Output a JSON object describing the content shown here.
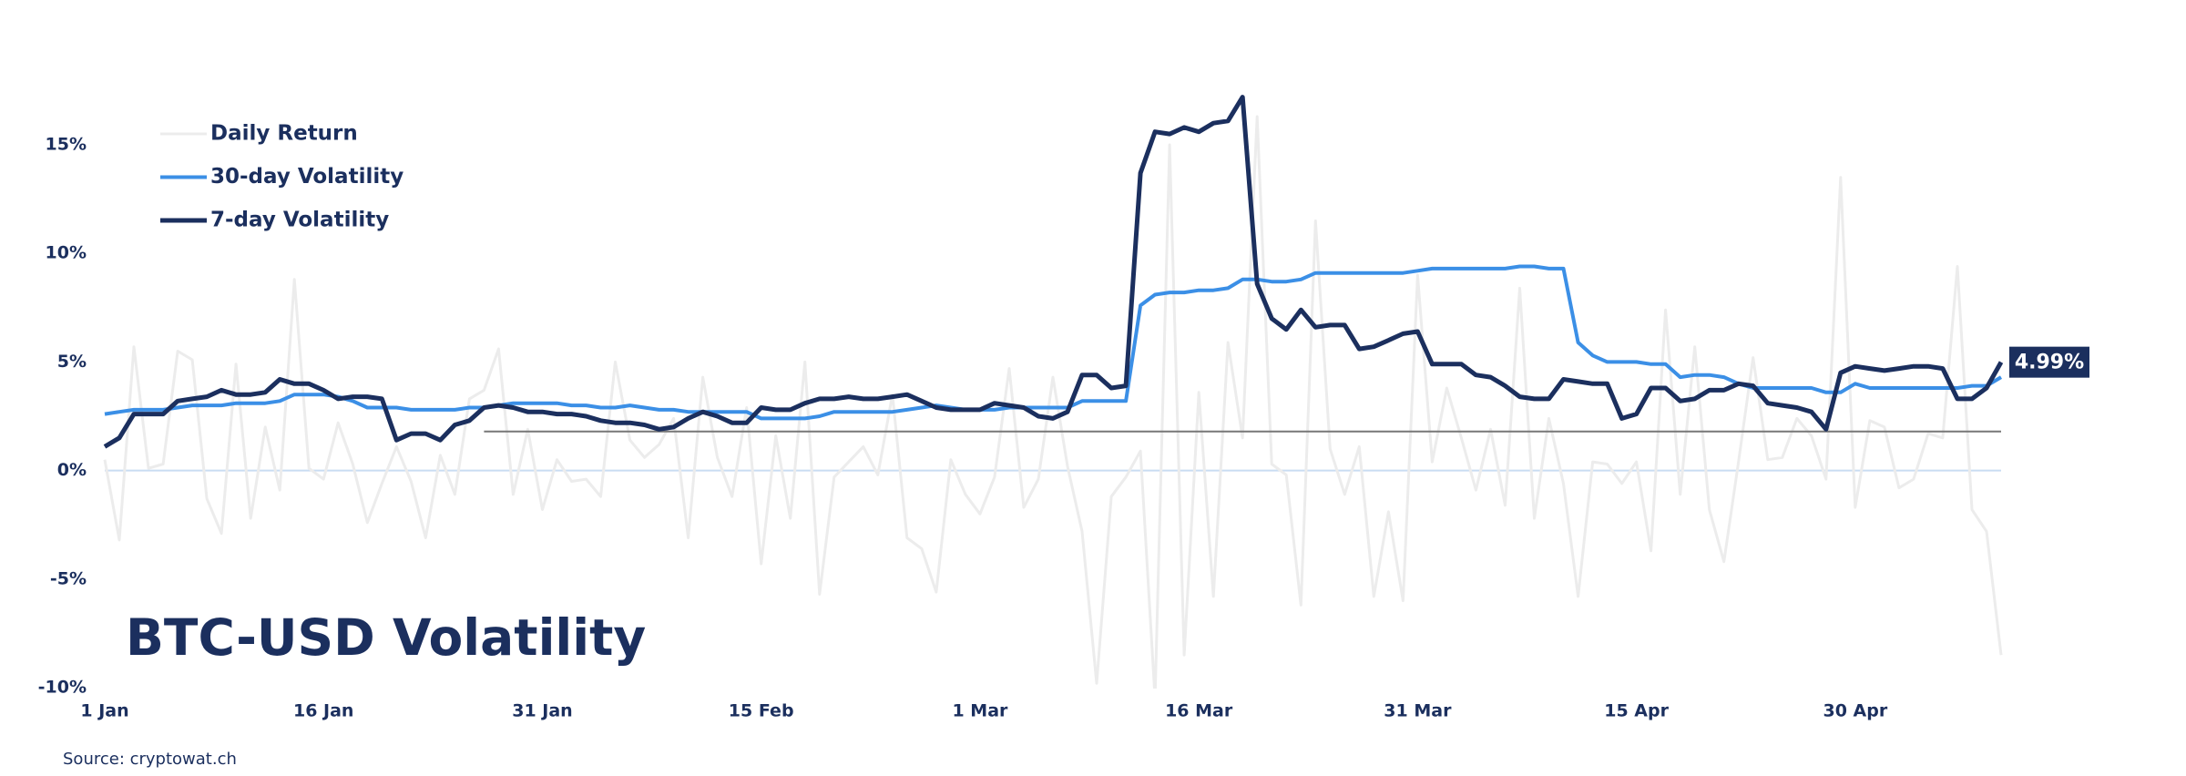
{
  "chart_data": {
    "type": "line",
    "title": "BTC-USD Volatility",
    "source": "Source: cryptowat.ch",
    "categories": [
      "1 Jan",
      null,
      null,
      null,
      null,
      null,
      null,
      null,
      null,
      null,
      null,
      null,
      null,
      null,
      null,
      "16 Jan",
      null,
      null,
      null,
      null,
      null,
      null,
      null,
      null,
      null,
      null,
      null,
      null,
      null,
      null,
      "31 Jan",
      null,
      null,
      null,
      null,
      null,
      null,
      null,
      null,
      null,
      null,
      null,
      null,
      null,
      null,
      "15 Feb",
      null,
      null,
      null,
      null,
      null,
      null,
      null,
      null,
      null,
      null,
      null,
      null,
      null,
      null,
      "1 Mar",
      null,
      null,
      null,
      null,
      null,
      null,
      null,
      null,
      null,
      null,
      null,
      null,
      null,
      null,
      "16 Mar",
      null,
      null,
      null,
      null,
      null,
      null,
      null,
      null,
      null,
      null,
      null,
      null,
      null,
      null,
      "31 Mar",
      null,
      null,
      null,
      null,
      null,
      null,
      null,
      null,
      null,
      null,
      null,
      null,
      null,
      null,
      "15 Apr",
      null,
      null,
      null,
      null,
      null,
      null,
      null,
      null,
      null,
      null,
      null,
      null,
      null,
      null,
      "30 Apr",
      null,
      null,
      null,
      null,
      null,
      null,
      null,
      null,
      null,
      null
    ],
    "series": [
      {
        "name": "Daily Return",
        "color": "#ececec",
        "width": 3,
        "values": [
          0.5,
          -3.2,
          5.7,
          0.1,
          0.3,
          5.5,
          5.1,
          -1.3,
          -2.9,
          4.9,
          -2.2,
          2.0,
          -0.9,
          8.8,
          0.1,
          -0.4,
          2.2,
          0.3,
          -2.4,
          -0.6,
          1.1,
          -0.5,
          -3.1,
          0.7,
          -1.1,
          3.3,
          3.7,
          5.6,
          -1.1,
          1.9,
          -1.8,
          0.5,
          -0.5,
          -0.4,
          -1.2,
          5.0,
          1.4,
          0.6,
          1.2,
          2.4,
          -3.1,
          4.3,
          0.6,
          -1.2,
          2.9,
          -4.3,
          1.6,
          -2.2,
          5.0,
          -5.7,
          -0.3,
          0.4,
          1.1,
          -0.2,
          3.5,
          -3.1,
          -3.6,
          -5.6,
          0.5,
          -1.1,
          -2.0,
          -0.3,
          4.7,
          -1.7,
          -0.4,
          4.3,
          0.2,
          -2.8,
          -9.8,
          -1.2,
          -0.3,
          0.9,
          -10.5,
          15.0,
          -8.5,
          3.6,
          -5.8,
          5.9,
          1.5,
          16.3,
          0.3,
          -0.2,
          -6.2,
          11.5,
          1.0,
          -1.1,
          1.1,
          -5.8,
          -1.9,
          -6.0,
          9.0,
          0.4,
          3.8,
          1.5,
          -0.9,
          1.9,
          -1.6,
          8.4,
          -2.2,
          2.4,
          -0.6,
          -5.8,
          0.4,
          0.3,
          -0.6,
          0.4,
          -3.7,
          7.4,
          -1.1,
          5.7,
          -1.8,
          -4.2,
          0.4,
          5.2,
          0.5,
          0.6,
          2.4,
          1.6,
          -0.4,
          13.5,
          -1.7,
          2.3,
          2.0,
          -0.8,
          -0.4,
          1.7,
          1.5,
          9.4,
          -1.8,
          -2.8,
          -8.5
        ]
      },
      {
        "name": "30-day Volatility",
        "color": "#3b8fe6",
        "width": 4,
        "values": [
          2.6,
          2.7,
          2.8,
          2.8,
          2.8,
          2.9,
          3.0,
          3.0,
          3.0,
          3.1,
          3.1,
          3.1,
          3.2,
          3.5,
          3.5,
          3.5,
          3.4,
          3.2,
          2.9,
          2.9,
          2.9,
          2.8,
          2.8,
          2.8,
          2.8,
          2.9,
          2.9,
          3.0,
          3.1,
          3.1,
          3.1,
          3.1,
          3.0,
          3.0,
          2.9,
          2.9,
          3.0,
          2.9,
          2.8,
          2.8,
          2.7,
          2.7,
          2.7,
          2.7,
          2.7,
          2.4,
          2.4,
          2.4,
          2.4,
          2.5,
          2.7,
          2.7,
          2.7,
          2.7,
          2.7,
          2.8,
          2.9,
          3.0,
          2.9,
          2.8,
          2.8,
          2.8,
          2.9,
          2.9,
          2.9,
          2.9,
          2.9,
          3.2,
          3.2,
          3.2,
          3.2,
          7.6,
          8.1,
          8.2,
          8.2,
          8.3,
          8.3,
          8.4,
          8.8,
          8.8,
          8.7,
          8.7,
          8.8,
          9.1,
          9.1,
          9.1,
          9.1,
          9.1,
          9.1,
          9.1,
          9.2,
          9.3,
          9.3,
          9.3,
          9.3,
          9.3,
          9.3,
          9.4,
          9.4,
          9.3,
          9.3,
          5.9,
          5.3,
          5.0,
          5.0,
          5.0,
          4.9,
          4.9,
          4.3,
          4.4,
          4.4,
          4.3,
          4.0,
          3.8,
          3.8,
          3.8,
          3.8,
          3.8,
          3.6,
          3.6,
          4.0,
          3.8,
          3.8,
          3.8,
          3.8,
          3.8,
          3.8,
          3.8,
          3.9,
          3.9,
          4.3
        ]
      },
      {
        "name": "7-day Volatility",
        "color": "#1b2f5e",
        "width": 5,
        "end_label": "4.99%",
        "values": [
          1.1,
          1.5,
          2.6,
          2.6,
          2.6,
          3.2,
          3.3,
          3.4,
          3.7,
          3.5,
          3.5,
          3.6,
          4.2,
          4.0,
          4.0,
          3.7,
          3.3,
          3.4,
          3.4,
          3.3,
          1.4,
          1.7,
          1.7,
          1.4,
          2.1,
          2.3,
          2.9,
          3.0,
          2.9,
          2.7,
          2.7,
          2.6,
          2.6,
          2.5,
          2.3,
          2.2,
          2.2,
          2.1,
          1.9,
          2.0,
          2.4,
          2.7,
          2.5,
          2.2,
          2.2,
          2.9,
          2.8,
          2.8,
          3.1,
          3.3,
          3.3,
          3.4,
          3.3,
          3.3,
          3.4,
          3.5,
          3.2,
          2.9,
          2.8,
          2.8,
          2.8,
          3.1,
          3.0,
          2.9,
          2.5,
          2.4,
          2.7,
          4.4,
          4.4,
          3.8,
          3.9,
          13.7,
          15.6,
          15.5,
          15.8,
          15.6,
          16.0,
          16.1,
          17.2,
          8.6,
          7.0,
          6.5,
          7.4,
          6.6,
          6.7,
          6.7,
          5.6,
          5.7,
          6.0,
          6.3,
          6.4,
          4.9,
          4.9,
          4.9,
          4.4,
          4.3,
          3.9,
          3.4,
          3.3,
          3.3,
          4.2,
          4.1,
          4.0,
          4.0,
          2.4,
          2.6,
          3.8,
          3.8,
          3.2,
          3.3,
          3.7,
          3.7,
          4.0,
          3.9,
          3.1,
          3.0,
          2.9,
          2.7,
          1.9,
          4.5,
          4.8,
          4.7,
          4.6,
          4.7,
          4.8,
          4.8,
          4.7,
          3.3,
          3.3,
          3.8,
          4.99
        ]
      }
    ],
    "reference_line": {
      "value": 1.8,
      "from_index": 26,
      "color": "#777777"
    },
    "ylim": [
      -10,
      18
    ],
    "yticks": [
      {
        "value": -10,
        "label": "-10%"
      },
      {
        "value": -5,
        "label": "-5%"
      },
      {
        "value": 0,
        "label": "0%"
      },
      {
        "value": 5,
        "label": "5%"
      },
      {
        "value": 10,
        "label": "10%"
      },
      {
        "value": 15,
        "label": "15%"
      }
    ],
    "zero_line_color": "#c9dcf2",
    "legend": "top-left"
  }
}
